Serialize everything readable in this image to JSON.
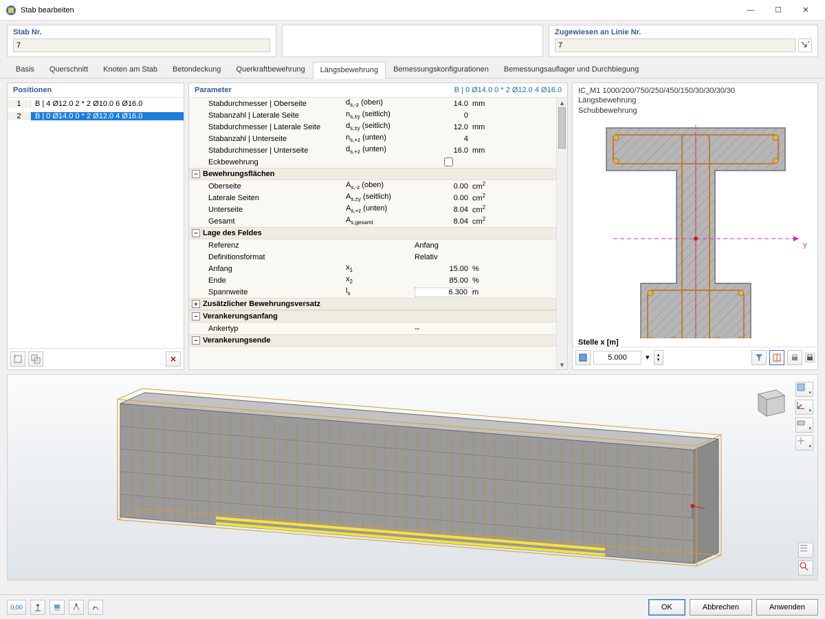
{
  "window": {
    "title": "Stab bearbeiten",
    "minimize": "—",
    "maximize": "☐",
    "close": "✕"
  },
  "top": {
    "stab_label": "Stab Nr.",
    "stab_value": "7",
    "line_label": "Zugewiesen an Linie Nr.",
    "line_value": "7"
  },
  "tabs": [
    {
      "label": "Basis"
    },
    {
      "label": "Querschnitt"
    },
    {
      "label": "Knoten am Stab"
    },
    {
      "label": "Betondeckung"
    },
    {
      "label": "Querkraftbewehrung"
    },
    {
      "label": "Längsbewehrung",
      "active": true
    },
    {
      "label": "Bemessungskonfigurationen"
    },
    {
      "label": "Bemessungsauflager und Durchbiegung"
    }
  ],
  "positions": {
    "header": "Positionen",
    "rows": [
      {
        "n": "1",
        "text": "B | 4 Ø12.0 2 * 2 Ø10.0 6 Ø16.0"
      },
      {
        "n": "2",
        "text": "B | 0 Ø14.0 0 * 2 Ø12.0 4 Ø16.0",
        "selected": true
      }
    ]
  },
  "params": {
    "header": "Parameter",
    "header_rhs": "B | 0 Ø14.0 0 * 2 Ø12.0 4 Ø16.0",
    "group0_rows": [
      {
        "name": "Stabdurchmesser | Oberseite",
        "sym": "d<sub>s,-z</sub> (oben)",
        "val": "14.0",
        "unit": "mm"
      },
      {
        "name": "Stabanzahl | Laterale Seite",
        "sym": "n<sub>s,±y</sub> (seitlich)",
        "val": "0",
        "unit": ""
      },
      {
        "name": "Stabdurchmesser | Laterale Seite",
        "sym": "d<sub>s,±y</sub> (seitlich)",
        "val": "12.0",
        "unit": "mm"
      },
      {
        "name": "Stabanzahl | Unterseite",
        "sym": "n<sub>s,+z</sub> (unten)",
        "val": "4",
        "unit": ""
      },
      {
        "name": "Stabdurchmesser | Unterseite",
        "sym": "d<sub>s,+z</sub> (unten)",
        "val": "16.0",
        "unit": "mm"
      },
      {
        "name": "Eckbewehrung",
        "sym": "",
        "checkbox": true
      }
    ],
    "group1": {
      "title": "Bewehrungsflächen",
      "rows": [
        {
          "name": "Oberseite",
          "sym": "A<sub>s,-z</sub> (oben)",
          "val": "0.00",
          "unit": "cm<sup>2</sup>"
        },
        {
          "name": "Laterale Seiten",
          "sym": "A<sub>s,±y</sub> (seitlich)",
          "val": "0.00",
          "unit": "cm<sup>2</sup>"
        },
        {
          "name": "Unterseite",
          "sym": "A<sub>s,+z</sub> (unten)",
          "val": "8.04",
          "unit": "cm<sup>2</sup>"
        },
        {
          "name": "Gesamt",
          "sym": "A<sub>s,gesamt</sub>",
          "val": "8.04",
          "unit": "cm<sup>2</sup>"
        }
      ]
    },
    "group2": {
      "title": "Lage des Feldes",
      "rows": [
        {
          "name": "Referenz",
          "sym": "",
          "val": "Anfang",
          "unit": "",
          "textval": true
        },
        {
          "name": "Definitionsformat",
          "sym": "",
          "val": "Relativ",
          "unit": "",
          "textval": true
        },
        {
          "name": "Anfang",
          "sym": "x<sub>1</sub>",
          "val": "15.00",
          "unit": "%"
        },
        {
          "name": "Ende",
          "sym": "x<sub>2</sub>",
          "val": "85.00",
          "unit": "%"
        },
        {
          "name": "Spannweite",
          "sym": "l<sub>s</sub>",
          "val": "6.300",
          "unit": "m",
          "boxed": true
        }
      ]
    },
    "group3": {
      "title": "Zusätzlicher Bewehrungsversatz",
      "collapsed": true
    },
    "group4": {
      "title": "Verankerungsanfang",
      "rows": [
        {
          "name": "Ankertyp",
          "sym": "",
          "val": "--",
          "unit": "",
          "textval": true
        }
      ]
    },
    "group5": {
      "title": "Verankerungsende",
      "collapsed": false
    }
  },
  "preview": {
    "line1": "IC_M1 1000/200/750/250/450/150/30/30/30/30",
    "line2": "Längsbewehrung",
    "line3": "Schubbewehrung",
    "x_label": "Stelle x [m]",
    "x_value": "5.000",
    "section": {
      "top_flange_w": 260,
      "top_flange_h": 62,
      "web_w": 56,
      "web_h": 164,
      "bot_flange_w": 160,
      "bot_flange_h": 96,
      "fill": "#b6b6b6",
      "hatch": "#8c8c8c",
      "rebar_color": "#c07a3a",
      "rebar_corner": "#e8b04a",
      "axis_color": "#e327c4",
      "y_label": "y"
    }
  },
  "bottom": {
    "ok": "OK",
    "cancel": "Abbrechen",
    "apply": "Anwenden"
  },
  "colors": {
    "accent": "#355a9a",
    "link": "#1b6fbf",
    "selection": "#1e7edb"
  }
}
